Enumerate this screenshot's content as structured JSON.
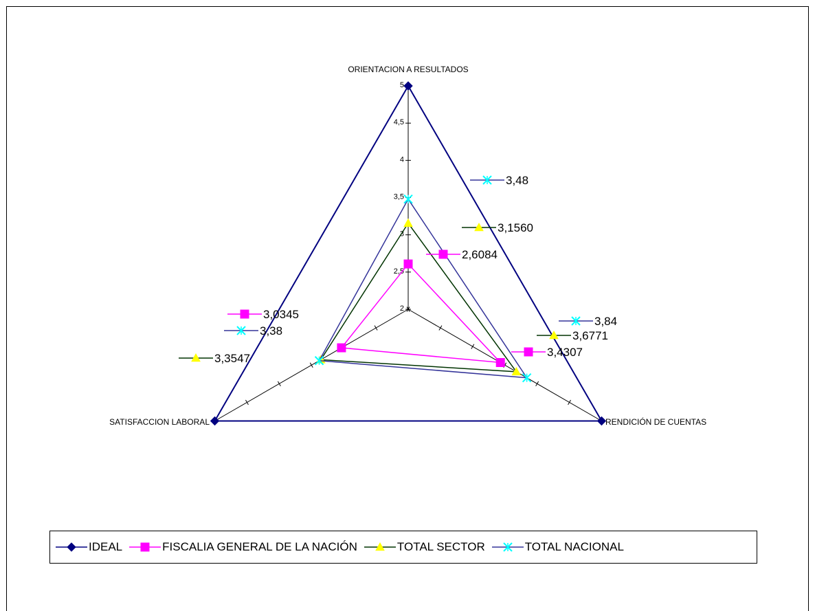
{
  "chart_data": {
    "type": "radar",
    "axes": [
      "ORIENTACION A RESULTADOS",
      "RENDICIÓN DE CUENTAS",
      "SATISFACCION LABORAL"
    ],
    "r_min": 2,
    "r_max": 5,
    "r_ticks": [
      "2",
      "2,5",
      "3",
      "3,5",
      "4",
      "4,5",
      "5"
    ],
    "grid": false,
    "legend_position": "bottom",
    "series": [
      {
        "name": "IDEAL",
        "values": [
          5,
          5,
          5
        ],
        "color": "#000080",
        "marker": "diamond",
        "labels": []
      },
      {
        "name": "FISCALIA GENERAL DE LA NACIÓN",
        "values": [
          2.6084,
          3.4307,
          3.0345
        ],
        "color": "#FF00FF",
        "marker": "square",
        "labels": [
          "2,6084",
          "3,4307",
          "3,0345"
        ]
      },
      {
        "name": "TOTAL SECTOR",
        "values": [
          3.156,
          3.6771,
          3.3547
        ],
        "color": "#003300",
        "marker": "triangle",
        "marker_color": "#FFFF00",
        "labels": [
          "3,1560",
          "3,6771",
          "3,3547"
        ]
      },
      {
        "name": "TOTAL NACIONAL",
        "values": [
          3.48,
          3.84,
          3.38
        ],
        "color": "#333399",
        "marker": "x",
        "marker_color": "#00FFFF",
        "labels": [
          "3,48",
          "3,84",
          "3,38"
        ]
      }
    ]
  }
}
